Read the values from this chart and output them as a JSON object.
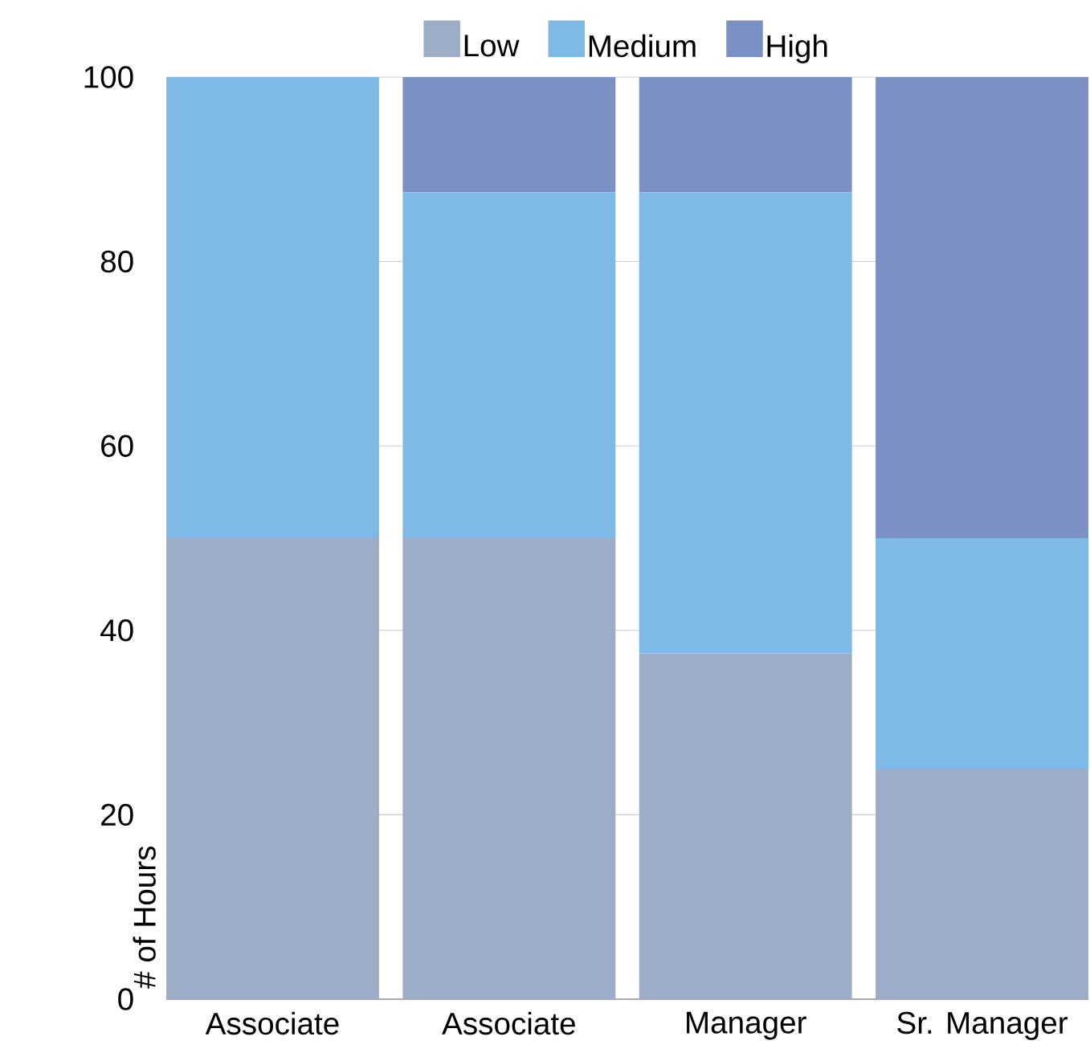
{
  "chart_data": {
    "type": "bar",
    "stacked": true,
    "ylabel": "# of Hours",
    "categories": [
      "Associate",
      "Associate",
      "Manager",
      "Sr. Manager"
    ],
    "series": [
      {
        "name": "Low",
        "color": "#9dadc8",
        "values": [
          50,
          50,
          37.5,
          25
        ]
      },
      {
        "name": "Medium",
        "color": "#7fbae7",
        "values": [
          50,
          37.5,
          50,
          25
        ]
      },
      {
        "name": "High",
        "color": "#7b91c3",
        "values": [
          0,
          12.5,
          12.5,
          50
        ]
      }
    ],
    "ylim": [
      0,
      100
    ],
    "yticks": [
      0,
      20,
      40,
      60,
      80,
      100
    ],
    "grid": "y",
    "legend": "top"
  }
}
